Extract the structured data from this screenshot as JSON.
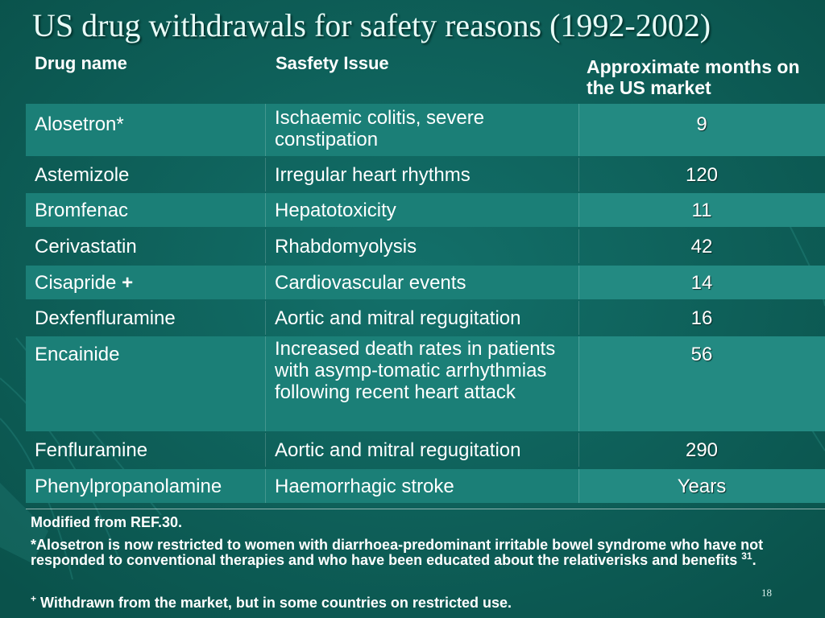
{
  "title": "US drug withdrawals for safety reasons (1992-2002)",
  "table": {
    "headers": {
      "name": "Drug name",
      "issue": "Sasfety Issue",
      "months": "Approximate months on the US market"
    },
    "rows": [
      {
        "name": "Alosetron*",
        "marker": "",
        "issue": "Ischaemic colitis, severe constipation",
        "months": "9"
      },
      {
        "name": "Astemizole",
        "marker": "",
        "issue": "Irregular heart rhythms",
        "months": "120"
      },
      {
        "name": "Bromfenac",
        "marker": "",
        "issue": "Hepatotoxicity",
        "months": "11"
      },
      {
        "name": "Cerivastatin",
        "marker": "",
        "issue": "Rhabdomyolysis",
        "months": "42"
      },
      {
        "name": "Cisapride",
        "marker": "+",
        "issue": "Cardiovascular events",
        "months": "14"
      },
      {
        "name": "Dexfenfluramine",
        "marker": "",
        "issue": "Aortic and mitral regugitation",
        "months": "16"
      },
      {
        "name": "Encainide",
        "marker": "",
        "issue": "Increased death rates in patients with asymp-tomatic arrhythmias following recent heart attack",
        "months": "56"
      },
      {
        "name": "Fenfluramine",
        "marker": "",
        "issue": "Aortic and mitral regugitation",
        "months": "290"
      },
      {
        "name": "Phenylpropanolamine",
        "marker": "",
        "issue": "Haemorrhagic stroke",
        "months": "Years"
      }
    ]
  },
  "notes": {
    "source": "Modified from REF.30.",
    "alosetron": "*Alosetron is now restricted to women with diarrhoea-predominant irritable bowel syndrome who have not responded to conventional therapies and who have been educated about the relativerisks and benefits",
    "alosetron_ref": "31",
    "alosetron_end": ".",
    "withdrawn_marker": "+",
    "withdrawn": "Withdrawn from the market, but in some countries on restricted use."
  },
  "page_number": "18",
  "colors": {
    "background": "#0d5f57",
    "shaded_row": "#1b7f77",
    "title": "#e8fbf7"
  }
}
